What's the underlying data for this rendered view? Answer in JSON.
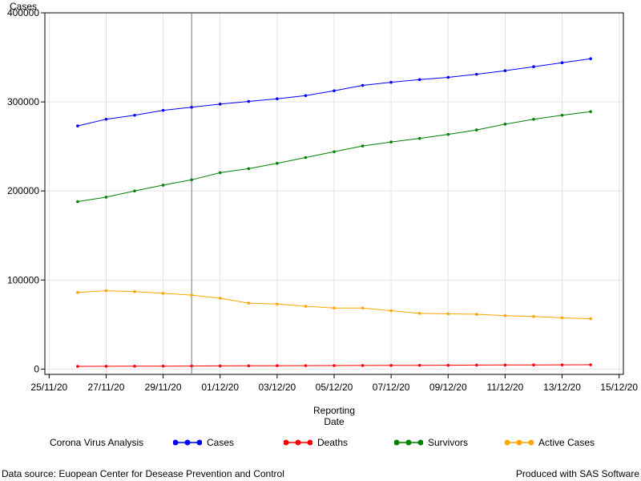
{
  "chart_data": {
    "type": "line",
    "ylabel": "Cases",
    "xlabel_line1": "Reporting",
    "xlabel_line2": "Date",
    "ylim": [
      0,
      400000
    ],
    "yticks": [
      0,
      100000,
      200000,
      300000,
      400000
    ],
    "ytick_labels": [
      "0",
      "100000",
      "200000",
      "300000",
      "400000"
    ],
    "xlim": [
      "2020-11-25",
      "2020-12-15"
    ],
    "xticks": [
      "2020-11-25",
      "2020-11-27",
      "2020-11-29",
      "2020-12-01",
      "2020-12-03",
      "2020-12-05",
      "2020-12-07",
      "2020-12-09",
      "2020-12-11",
      "2020-12-13",
      "2020-12-15"
    ],
    "xtick_labels": [
      "25/11/20",
      "27/11/20",
      "29/11/20",
      "01/12/20",
      "03/12/20",
      "05/12/20",
      "07/12/20",
      "09/12/20",
      "11/12/20",
      "13/12/20",
      "15/12/20"
    ],
    "reference_line_x": "2020-11-30",
    "grid": true,
    "x": [
      "2020-11-26",
      "2020-11-27",
      "2020-11-28",
      "2020-11-29",
      "2020-11-30",
      "2020-12-01",
      "2020-12-02",
      "2020-12-03",
      "2020-12-04",
      "2020-12-05",
      "2020-12-06",
      "2020-12-07",
      "2020-12-08",
      "2020-12-09",
      "2020-12-10",
      "2020-12-11",
      "2020-12-12",
      "2020-12-13",
      "2020-12-14"
    ],
    "series": [
      {
        "name": "Cases",
        "color": "#0000ff",
        "values": [
          273000,
          280500,
          285000,
          290500,
          294000,
          297500,
          300500,
          303500,
          307000,
          312500,
          318500,
          322000,
          325000,
          327500,
          331000,
          335000,
          339500,
          344000,
          348500
        ]
      },
      {
        "name": "Deaths",
        "color": "#ff0000",
        "values": [
          3000,
          3100,
          3200,
          3300,
          3400,
          3500,
          3600,
          3700,
          3800,
          3900,
          4000,
          4100,
          4200,
          4300,
          4400,
          4500,
          4600,
          4700,
          4800
        ]
      },
      {
        "name": "Survivors",
        "color": "#008000",
        "values": [
          188000,
          193000,
          200000,
          206500,
          212500,
          220500,
          225000,
          231000,
          237500,
          244000,
          250500,
          255000,
          259000,
          263500,
          268500,
          275000,
          280500,
          285000,
          289000
        ]
      },
      {
        "name": "Active Cases",
        "color": "#ffa500",
        "values": [
          86000,
          88000,
          87000,
          85000,
          83000,
          79500,
          74000,
          73000,
          70500,
          68500,
          68500,
          65500,
          62500,
          62000,
          61500,
          60000,
          59000,
          57500,
          56500
        ]
      }
    ]
  },
  "legend": {
    "title": "Corona Virus Analysis"
  },
  "footer": {
    "source": "Data source: Euopean Center for Desease Prevention and Control",
    "credit": "Produced with SAS Software"
  }
}
